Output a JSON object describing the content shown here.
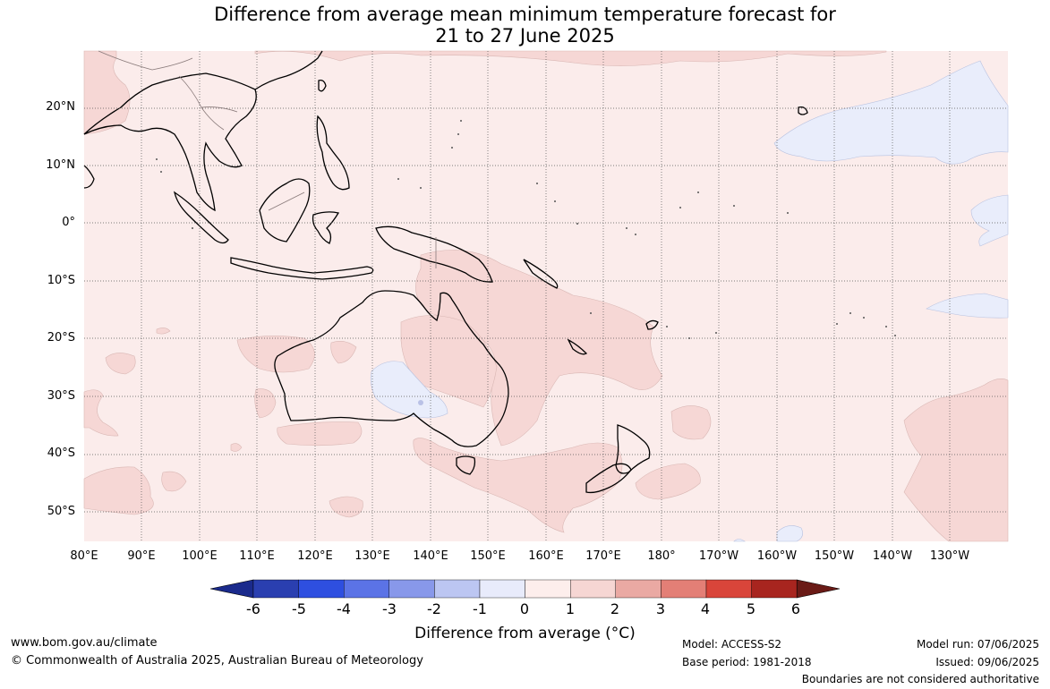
{
  "title": {
    "line1": "Difference from average mean minimum temperature forecast for",
    "line2": "21 to 27 June 2025"
  },
  "map": {
    "lat_labels": [
      "20°N",
      "10°N",
      "0°",
      "10°S",
      "20°S",
      "30°S",
      "40°S",
      "50°S"
    ],
    "lon_labels": [
      "80°E",
      "90°E",
      "100°E",
      "110°E",
      "120°E",
      "130°E",
      "140°E",
      "150°E",
      "160°E",
      "170°E",
      "180°",
      "170°W",
      "160°W",
      "150°W",
      "140°W",
      "130°W"
    ]
  },
  "colorbar": {
    "ticks": [
      "-6",
      "-5",
      "-4",
      "-3",
      "-2",
      "-1",
      "0",
      "1",
      "2",
      "3",
      "4",
      "5",
      "6"
    ],
    "colors": [
      "#1a2a8c",
      "#2a3fb0",
      "#2e4fe0",
      "#5b73e6",
      "#8898ea",
      "#bcc6f2",
      "#e8ebfb",
      "#fdeeec",
      "#f6d6d3",
      "#eaa9a3",
      "#e37f76",
      "#d9453a",
      "#a8251f",
      "#6a1a16"
    ],
    "label": "Difference from average (°C)"
  },
  "footer": {
    "website": "www.bom.gov.au/climate",
    "copyright": "© Commonwealth of Australia 2025, Australian Bureau of Meteorology",
    "model": "Model: ACCESS-S2",
    "base_period": "Base period: 1981-2018",
    "model_run": "Model run: 07/06/2025",
    "issued": "Issued: 09/06/2025",
    "disclaimer": "Boundaries are not considered authoritative"
  }
}
